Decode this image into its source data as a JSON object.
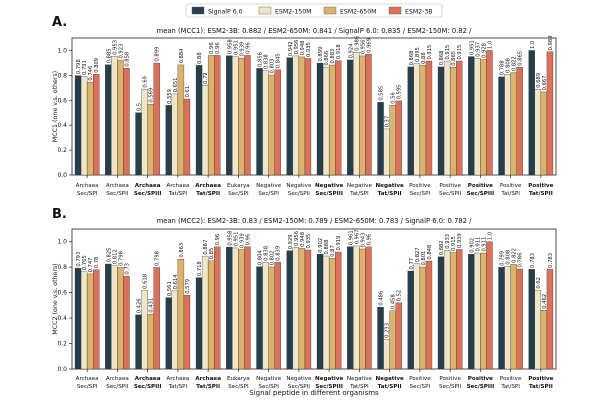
{
  "legend": {
    "entries": [
      {
        "name": "SignalP 6.0",
        "color": "#263f4d"
      },
      {
        "name": "ESM2-150M",
        "color": "#f1e5c7"
      },
      {
        "name": "ESM2-650M",
        "color": "#dcb36a"
      },
      {
        "name": "ESM2-3B",
        "color": "#db7159"
      }
    ]
  },
  "xlabel": "Signal peptide in different organisms",
  "chart_data": [
    {
      "type": "bar",
      "panel_label": "A.",
      "title": "mean (MCC1): ESM2-3B: 0.882 / ESM2-650M: 0.841 / SignalP 6.0: 0.835 / ESM2-150M: 0.82 /",
      "ylabel": "MCC1 (one v.s. others)",
      "ylim": [
        0,
        1.1
      ],
      "yticks": [
        "0.0",
        "0.2",
        "0.4",
        "0.6",
        "0.8",
        "1.0"
      ],
      "categories": [
        {
          "line1": "Archaea",
          "line2": "Sec/SPI",
          "bold": false
        },
        {
          "line1": "Archaea",
          "line2": "Sec/SPII",
          "bold": false
        },
        {
          "line1": "Archaea",
          "line2": "Sec/SPIII",
          "bold": true
        },
        {
          "line1": "Archaea",
          "line2": "Tat/SPI",
          "bold": false
        },
        {
          "line1": "Archaea",
          "line2": "Tat/SPII",
          "bold": true
        },
        {
          "line1": "Eukarya",
          "line2": "Sec/SPI",
          "bold": false
        },
        {
          "line1": "Negative",
          "line2": "Sec/SPI",
          "bold": false
        },
        {
          "line1": "Negative",
          "line2": "Sec/SPII",
          "bold": false
        },
        {
          "line1": "Negative",
          "line2": "Sec/SPIII",
          "bold": true
        },
        {
          "line1": "Negative",
          "line2": "Tat/SPI",
          "bold": false
        },
        {
          "line1": "Negative",
          "line2": "Tat/SPII",
          "bold": true
        },
        {
          "line1": "Positive",
          "line2": "Sec/SPI",
          "bold": false
        },
        {
          "line1": "Positive",
          "line2": "Sec/SPII",
          "bold": false
        },
        {
          "line1": "Positive",
          "line2": "Sec/SPIII",
          "bold": true
        },
        {
          "line1": "Positive",
          "line2": "Tat/SPI",
          "bold": false
        },
        {
          "line1": "Positive",
          "line2": "Tat/SPII",
          "bold": true
        }
      ],
      "series": [
        {
          "name": "SignalP 6.0",
          "values": [
            0.798,
            0.885,
            0.5,
            0.559,
            0.88,
            0.958,
            0.856,
            0.942,
            0.899,
            0.924,
            0.585,
            0.868,
            0.868,
            0.951,
            0.788,
            1.0
          ],
          "labels": [
            "0.798",
            "0.885",
            "0.5",
            "0.559",
            "0.88",
            "0.958",
            "0.856",
            "0.942",
            "0.899",
            "0.924",
            "0.585",
            "0.868",
            "0.868",
            "0.951",
            "0.788",
            "1.0"
          ]
        },
        {
          "name": "ESM2-150M",
          "values": [
            0.791,
            0.953,
            0.69,
            0.651,
            0.72,
            0.951,
            0.838,
            0.956,
            0.866,
            0.986,
            0.37,
            0.895,
            0.915,
            0.937,
            0.808,
            0.689
          ],
          "labels": [
            "0.791",
            "0.953",
            "0.69",
            "0.651",
            "0.72",
            "0.951",
            "0.838",
            "0.956",
            "0.866",
            "0.986",
            "0.37",
            "0.895",
            "0.915",
            "0.937",
            "0.808",
            "0.689"
          ]
        },
        {
          "name": "ESM2-650M",
          "values": [
            0.746,
            0.923,
            0.569,
            0.884,
            0.96,
            0.939,
            0.803,
            0.948,
            0.883,
            0.956,
            0.56,
            0.88,
            0.865,
            0.928,
            0.822,
            0.667
          ],
          "labels": [
            "0.746",
            "0.923",
            "0.569",
            "0.884",
            "0.96",
            "0.939",
            "0.803",
            "0.948",
            "0.883",
            "0.956",
            "0.56",
            "0.88",
            "0.865",
            "0.928",
            "0.822",
            "0.667"
          ]
        },
        {
          "name": "ESM2-3B",
          "values": [
            0.809,
            0.858,
            0.899,
            0.61,
            0.96,
            0.96,
            0.845,
            0.935,
            0.918,
            0.969,
            0.595,
            0.915,
            0.915,
            1.0,
            0.865,
            0.989
          ],
          "labels": [
            "0.809",
            "0.858",
            "0.899",
            "0.61",
            "0.96",
            "0.96",
            "0.845",
            "0.935",
            "0.918",
            "0.969",
            "0.595",
            "0.915",
            "0.915",
            "1.0",
            "0.865",
            "0.989"
          ]
        }
      ]
    },
    {
      "type": "bar",
      "panel_label": "B.",
      "title": "mean (MCC2):  ESM2-3B: 0.83 / ESM2-150M: 0.789 / ESM2-650M: 0.783 / SignalP 6.0: 0.782 /",
      "ylabel": "MCC2 (one v.s. others)",
      "ylim": [
        0,
        1.1
      ],
      "yticks": [
        "0.0",
        "0.2",
        "0.4",
        "0.6",
        "0.8",
        "1.0"
      ],
      "categories": [
        {
          "line1": "Archaea",
          "line2": "Sec/SPI",
          "bold": false
        },
        {
          "line1": "Archaea",
          "line2": "Sec/SPII",
          "bold": false
        },
        {
          "line1": "Archaea",
          "line2": "Sec/SPIII",
          "bold": true
        },
        {
          "line1": "Archaea",
          "line2": "Tat/SPI",
          "bold": false
        },
        {
          "line1": "Archaea",
          "line2": "Tat/SPII",
          "bold": true
        },
        {
          "line1": "Eukarya",
          "line2": "Sec/SPI",
          "bold": false
        },
        {
          "line1": "Negative",
          "line2": "Sec/SPI",
          "bold": false
        },
        {
          "line1": "Negative",
          "line2": "Sec/SPII",
          "bold": false
        },
        {
          "line1": "Negative",
          "line2": "Sec/SPIII",
          "bold": true
        },
        {
          "line1": "Negative",
          "line2": "Tat/SPI",
          "bold": false
        },
        {
          "line1": "Negative",
          "line2": "Tat/SPII",
          "bold": true
        },
        {
          "line1": "Positive",
          "line2": "Sec/SPI",
          "bold": false
        },
        {
          "line1": "Positive",
          "line2": "Sec/SPII",
          "bold": false
        },
        {
          "line1": "Positive",
          "line2": "Sec/SPIII",
          "bold": true
        },
        {
          "line1": "Positive",
          "line2": "Tat/SPI",
          "bold": false
        },
        {
          "line1": "Positive",
          "line2": "Tat/SPII",
          "bold": true
        }
      ],
      "series": [
        {
          "name": "SignalP 6.0",
          "values": [
            0.793,
            0.825,
            0.426,
            0.561,
            0.718,
            0.958,
            0.804,
            0.929,
            0.902,
            0.961,
            0.486,
            0.77,
            0.882,
            0.902,
            0.799,
            0.783
          ],
          "labels": [
            "0.793",
            "0.825",
            "0.426",
            "0.561",
            "0.718",
            "0.958",
            "0.804",
            "0.929",
            "0.902",
            "0.961",
            "0.486",
            "0.77",
            "0.882",
            "0.902",
            "0.799",
            "0.783"
          ]
        },
        {
          "name": "ESM2-150M",
          "values": [
            0.765,
            0.812,
            0.618,
            0.614,
            0.887,
            0.951,
            0.838,
            0.956,
            0.888,
            0.967,
            0.233,
            0.827,
            0.933,
            0.911,
            0.808,
            0.62
          ],
          "labels": [
            "0.765",
            "0.812",
            "0.618",
            "0.614",
            "0.887",
            "0.951",
            "0.838",
            "0.956",
            "0.888",
            "0.967",
            "0.233",
            "0.827",
            "0.933",
            "0.911",
            "0.808",
            "0.62"
          ]
        },
        {
          "name": "ESM2-650M",
          "values": [
            0.747,
            0.798,
            0.431,
            0.863,
            0.85,
            0.939,
            0.802,
            0.948,
            0.87,
            0.943,
            0.458,
            0.801,
            0.915,
            0.911,
            0.822,
            0.462
          ],
          "labels": [
            "0.747",
            "0.798",
            "0.431",
            "0.863",
            "0.85",
            "0.939",
            "0.802",
            "0.948",
            "0.87",
            "0.943",
            "0.458",
            "0.801",
            "0.915",
            "0.911",
            "0.822",
            "0.462"
          ]
        },
        {
          "name": "ESM2-3B",
          "values": [
            0.78,
            0.73,
            0.798,
            0.579,
            0.96,
            0.96,
            0.839,
            0.935,
            0.919,
            0.96,
            0.52,
            0.848,
            0.939,
            1.0,
            0.786,
            0.783
          ],
          "labels": [
            "0.78",
            "0.73",
            "0.798",
            "0.579",
            "0.96",
            "0.96",
            "0.839",
            "0.935",
            "0.919",
            "0.96",
            "0.52",
            "0.848",
            "0.939",
            "1.0",
            "0.786",
            "0.783"
          ]
        }
      ]
    }
  ]
}
